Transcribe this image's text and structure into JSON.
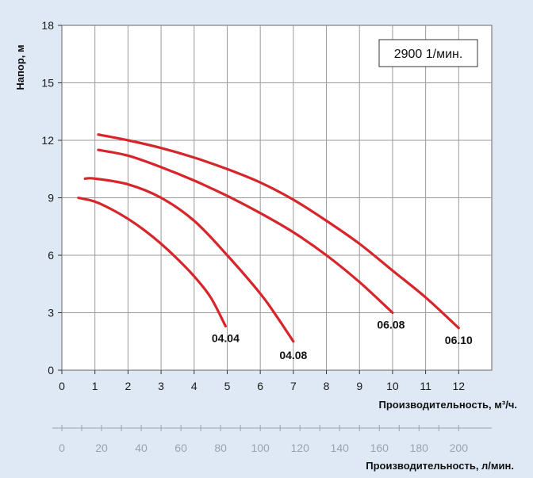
{
  "chart_data": {
    "type": "line",
    "speed_label": "2900 1/мин.",
    "ylabel": "Напор, м",
    "xlabel": "Производительность, м³/ч.",
    "x2label": "Производительность, л/мин.",
    "xlim": [
      0,
      13
    ],
    "ylim": [
      0,
      18
    ],
    "x_ticks": [
      0,
      1,
      2,
      3,
      4,
      5,
      6,
      7,
      8,
      9,
      10,
      11,
      12
    ],
    "y_ticks": [
      0,
      3,
      6,
      9,
      12,
      15,
      18
    ],
    "x2_ticks": [
      0,
      20,
      40,
      60,
      80,
      100,
      120,
      140,
      160,
      180,
      200
    ],
    "grid": true,
    "line_color": "#d6262b",
    "series": [
      {
        "name": "04.04",
        "x": [
          0.5,
          1,
          1.5,
          2,
          2.5,
          3,
          3.5,
          4,
          4.5,
          4.95
        ],
        "y": [
          9.0,
          8.8,
          8.4,
          7.9,
          7.3,
          6.6,
          5.8,
          4.9,
          3.8,
          2.3
        ]
      },
      {
        "name": "04.08",
        "x": [
          0.7,
          1,
          2,
          3,
          4,
          5,
          6,
          6.5,
          7
        ],
        "y": [
          10.0,
          10.0,
          9.7,
          9.0,
          7.8,
          6.0,
          4.0,
          2.8,
          1.5
        ]
      },
      {
        "name": "06.08",
        "x": [
          1.1,
          2,
          3,
          4,
          5,
          6,
          7,
          8,
          9,
          10
        ],
        "y": [
          11.5,
          11.2,
          10.6,
          9.9,
          9.1,
          8.2,
          7.2,
          6.0,
          4.6,
          3.0
        ]
      },
      {
        "name": "06.10",
        "x": [
          1.1,
          2,
          3,
          4,
          5,
          6,
          7,
          8,
          9,
          10,
          11,
          12
        ],
        "y": [
          12.3,
          12.0,
          11.6,
          11.1,
          10.5,
          9.8,
          8.9,
          7.8,
          6.6,
          5.2,
          3.8,
          2.2
        ]
      }
    ]
  }
}
